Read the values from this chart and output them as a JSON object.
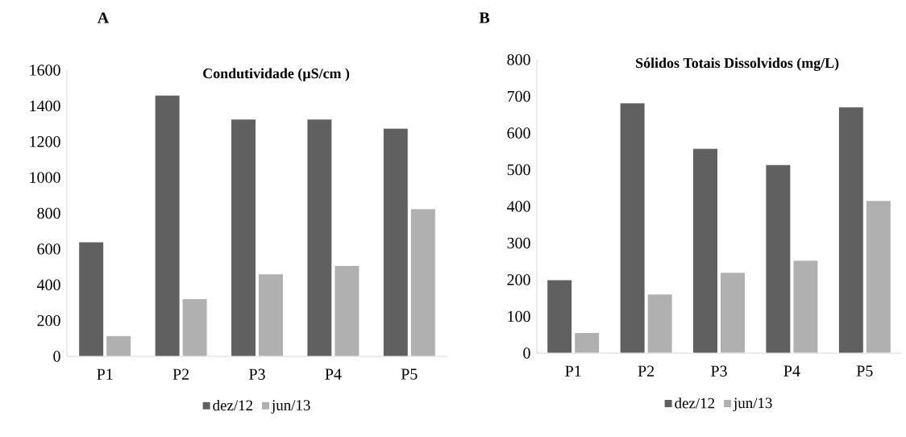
{
  "chart_data": [
    {
      "type": "bar",
      "title": "Condutividade (µS/cm )",
      "annotations": [
        "A"
      ],
      "categories": [
        "P1",
        "P2",
        "P3",
        "P4",
        "P5"
      ],
      "series": [
        {
          "name": "dez/12",
          "color": "#606060",
          "values": [
            640,
            1460,
            1326,
            1326,
            1275
          ]
        },
        {
          "name": "jun/13",
          "color": "#b0b0b0",
          "values": [
            116,
            322,
            461,
            508,
            825
          ]
        }
      ],
      "ylim": [
        0,
        1600
      ],
      "yticks": [
        0,
        200,
        400,
        600,
        800,
        1000,
        1200,
        1400,
        1600
      ],
      "legend": "bottom"
    },
    {
      "type": "bar",
      "title": "Sólidos Totais Dissolvidos (mg/L)",
      "annotations": [
        "B"
      ],
      "categories": [
        "P1",
        "P2",
        "P3",
        "P4",
        "P5"
      ],
      "series": [
        {
          "name": "dez/12",
          "color": "#606060",
          "values": [
            200,
            682,
            558,
            514,
            671
          ]
        },
        {
          "name": "jun/13",
          "color": "#b0b0b0",
          "values": [
            56,
            161,
            220,
            253,
            416
          ]
        }
      ],
      "ylim": [
        0,
        800
      ],
      "yticks": [
        0,
        100,
        200,
        300,
        400,
        500,
        600,
        700,
        800
      ],
      "legend": "bottom"
    }
  ]
}
